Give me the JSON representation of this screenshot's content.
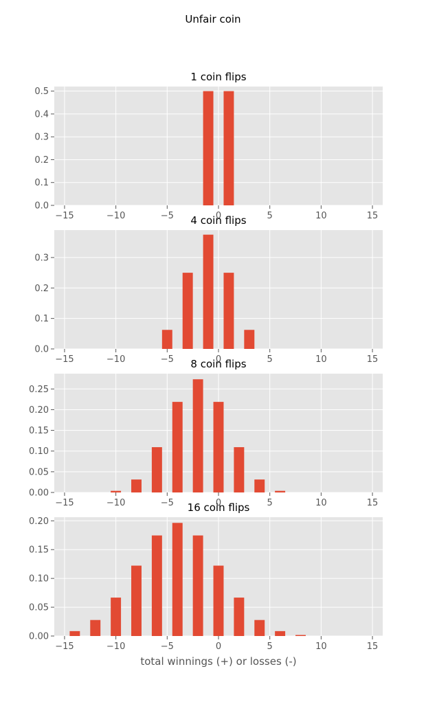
{
  "figure": {
    "title": "Unfair coin",
    "xlabel": "total winnings (+) or losses (-)"
  },
  "chart_data": [
    {
      "type": "bar",
      "title": "1 coin flips",
      "xlabel": "",
      "ylabel": "",
      "xlim": [
        -16,
        16
      ],
      "ylim": [
        0,
        0.52
      ],
      "xticks": [
        -15,
        -10,
        -5,
        0,
        5,
        10,
        15
      ],
      "yticks": [
        0.0,
        0.1,
        0.2,
        0.3,
        0.4,
        0.5
      ],
      "ytick_labels": [
        "0.0",
        "0.1",
        "0.2",
        "0.3",
        "0.4",
        "0.5"
      ],
      "grid": true,
      "color": "#E24A33",
      "x": [
        -1,
        1
      ],
      "values": [
        0.5,
        0.5
      ]
    },
    {
      "type": "bar",
      "title": "4 coin flips",
      "xlabel": "",
      "ylabel": "",
      "xlim": [
        -16,
        16
      ],
      "ylim": [
        0,
        0.39
      ],
      "xticks": [
        -15,
        -10,
        -5,
        0,
        5,
        10,
        15
      ],
      "yticks": [
        0.0,
        0.1,
        0.2,
        0.3
      ],
      "ytick_labels": [
        "0.0",
        "0.1",
        "0.2",
        "0.3"
      ],
      "grid": true,
      "color": "#E24A33",
      "x": [
        -5,
        -3,
        -1,
        1,
        3
      ],
      "values": [
        0.0625,
        0.25,
        0.375,
        0.25,
        0.0625
      ]
    },
    {
      "type": "bar",
      "title": "8 coin flips",
      "xlabel": "",
      "ylabel": "",
      "xlim": [
        -16,
        16
      ],
      "ylim": [
        0,
        0.287
      ],
      "xticks": [
        -15,
        -10,
        -5,
        0,
        5,
        10,
        15
      ],
      "yticks": [
        0.0,
        0.05,
        0.1,
        0.15,
        0.2,
        0.25
      ],
      "ytick_labels": [
        "0.00",
        "0.05",
        "0.10",
        "0.15",
        "0.20",
        "0.25"
      ],
      "grid": true,
      "color": "#E24A33",
      "x": [
        -10,
        -8,
        -6,
        -4,
        -2,
        0,
        2,
        4,
        6
      ],
      "values": [
        0.0039,
        0.0313,
        0.1094,
        0.2188,
        0.2734,
        0.2188,
        0.1094,
        0.0313,
        0.0039
      ]
    },
    {
      "type": "bar",
      "title": "16 coin flips",
      "xlabel": "total winnings (+) or losses (-)",
      "ylabel": "",
      "xlim": [
        -16,
        16
      ],
      "ylim": [
        0,
        0.2063
      ],
      "xticks": [
        -15,
        -10,
        -5,
        0,
        5,
        10,
        15
      ],
      "yticks": [
        0.0,
        0.05,
        0.1,
        0.15,
        0.2
      ],
      "ytick_labels": [
        "0.00",
        "0.05",
        "0.10",
        "0.15",
        "0.20"
      ],
      "grid": true,
      "color": "#E24A33",
      "x": [
        -14,
        -12,
        -10,
        -8,
        -6,
        -4,
        -2,
        0,
        2,
        4,
        6,
        8
      ],
      "values": [
        0.0085,
        0.0278,
        0.0667,
        0.1222,
        0.1746,
        0.1964,
        0.1746,
        0.1222,
        0.0667,
        0.0278,
        0.0085,
        0.0018
      ]
    }
  ]
}
